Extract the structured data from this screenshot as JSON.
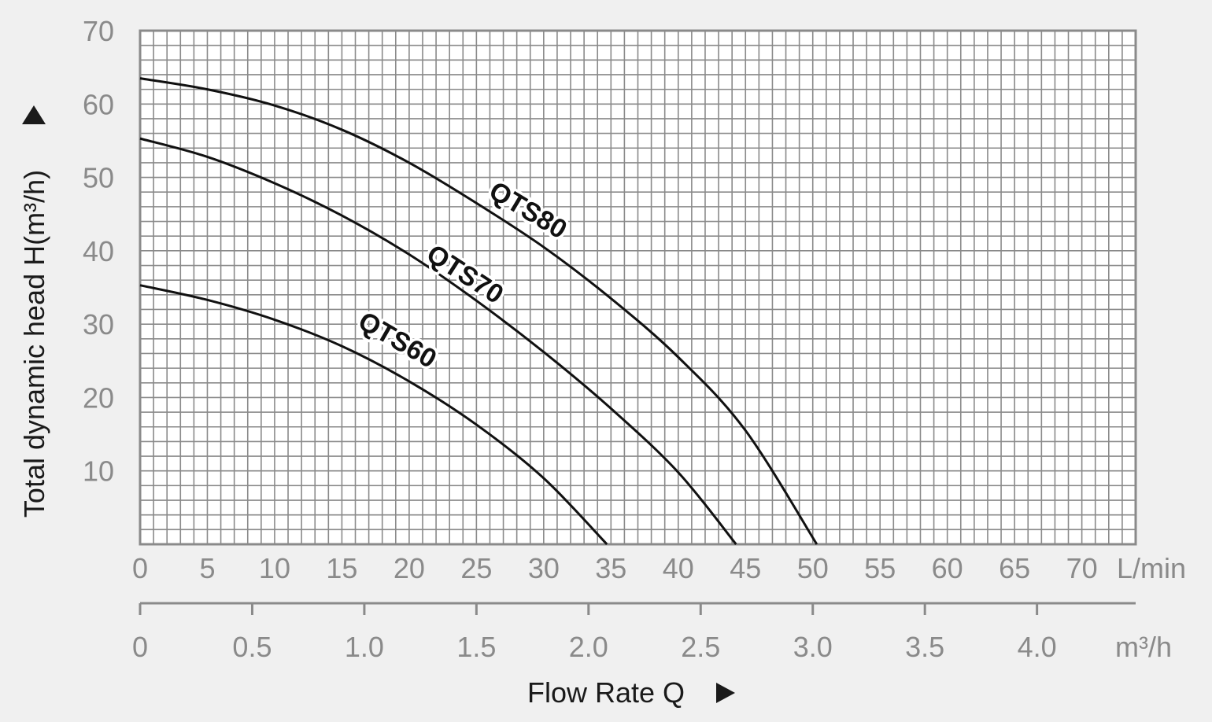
{
  "chart_data": {
    "type": "line",
    "title": "",
    "xlabel": "Flow Rate Q",
    "ylabel": "Total dynamic head H(m³/h)",
    "xlim": [
      0,
      74
    ],
    "ylim": [
      0,
      70
    ],
    "x_unit": "L/min",
    "x2_unit": "m³/h",
    "x_ticks": [
      "0",
      "5",
      "10",
      "15",
      "20",
      "25",
      "30",
      "35",
      "40",
      "45",
      "50",
      "55",
      "60",
      "65",
      "70"
    ],
    "x2_ticks": [
      "0",
      "0.5",
      "1.0",
      "1.5",
      "2.0",
      "2.5",
      "3.0",
      "3.5",
      "4.0"
    ],
    "y_ticks": [
      "10",
      "20",
      "30",
      "40",
      "50",
      "60",
      "70"
    ],
    "grid": true,
    "series": [
      {
        "name": "QTS80",
        "x": [
          0,
          5,
          10,
          15,
          20,
          25,
          30,
          35,
          40,
          45,
          50.3
        ],
        "y": [
          63.5,
          62,
          59.8,
          56.5,
          52,
          46.5,
          40.5,
          33.5,
          25.5,
          15.5,
          0
        ]
      },
      {
        "name": "QTS70",
        "x": [
          0,
          5,
          10,
          15,
          20,
          25,
          30,
          35,
          40,
          44.3
        ],
        "y": [
          55.3,
          52.8,
          49.2,
          44.8,
          39.5,
          33.2,
          26.2,
          18.5,
          9.8,
          0
        ]
      },
      {
        "name": "QTS60",
        "x": [
          0,
          5,
          10,
          15,
          20,
          25,
          30,
          34.7
        ],
        "y": [
          35.3,
          33.3,
          30.6,
          27,
          22.2,
          16.3,
          9,
          0
        ]
      }
    ]
  }
}
